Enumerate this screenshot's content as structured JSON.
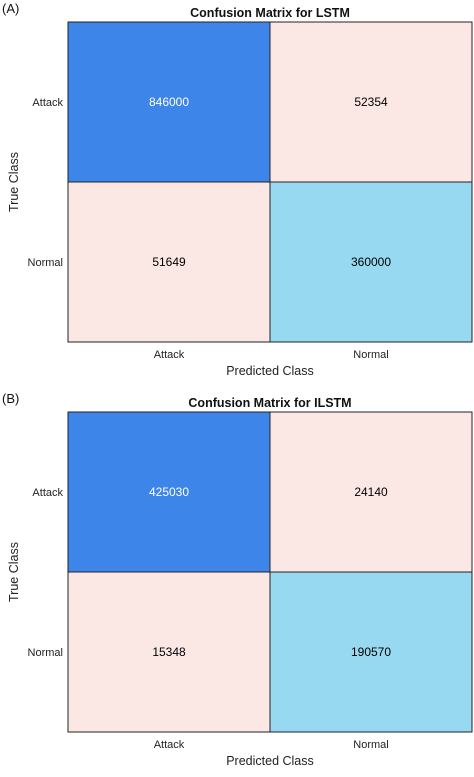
{
  "chart_data": [
    {
      "panel_label": "(A)",
      "type": "heatmap",
      "title": "Confusion Matrix for LSTM",
      "xlabel": "Predicted Class",
      "ylabel": "True Class",
      "x_categories": [
        "Attack",
        "Normal"
      ],
      "y_categories": [
        "Attack",
        "Normal"
      ],
      "values": [
        [
          846000,
          52354
        ],
        [
          51649,
          360000
        ]
      ],
      "cell_colors": [
        [
          "#3d85e8",
          "#fbe8e5"
        ],
        [
          "#fbe8e5",
          "#96d9f1"
        ]
      ],
      "text_colors": [
        [
          "#ffffff",
          "#000000"
        ],
        [
          "#000000",
          "#000000"
        ]
      ],
      "grid": false
    },
    {
      "panel_label": "(B)",
      "type": "heatmap",
      "title": "Confusion Matrix for ILSTM",
      "xlabel": "Predicted Class",
      "ylabel": "True Class",
      "x_categories": [
        "Attack",
        "Normal"
      ],
      "y_categories": [
        "Attack",
        "Normal"
      ],
      "values": [
        [
          425030,
          24140
        ],
        [
          15348,
          190570
        ]
      ],
      "cell_colors": [
        [
          "#3d85e8",
          "#fbe8e5"
        ],
        [
          "#fbe8e5",
          "#96d9f1"
        ]
      ],
      "text_colors": [
        [
          "#ffffff",
          "#000000"
        ],
        [
          "#000000",
          "#000000"
        ]
      ],
      "grid": false
    }
  ]
}
